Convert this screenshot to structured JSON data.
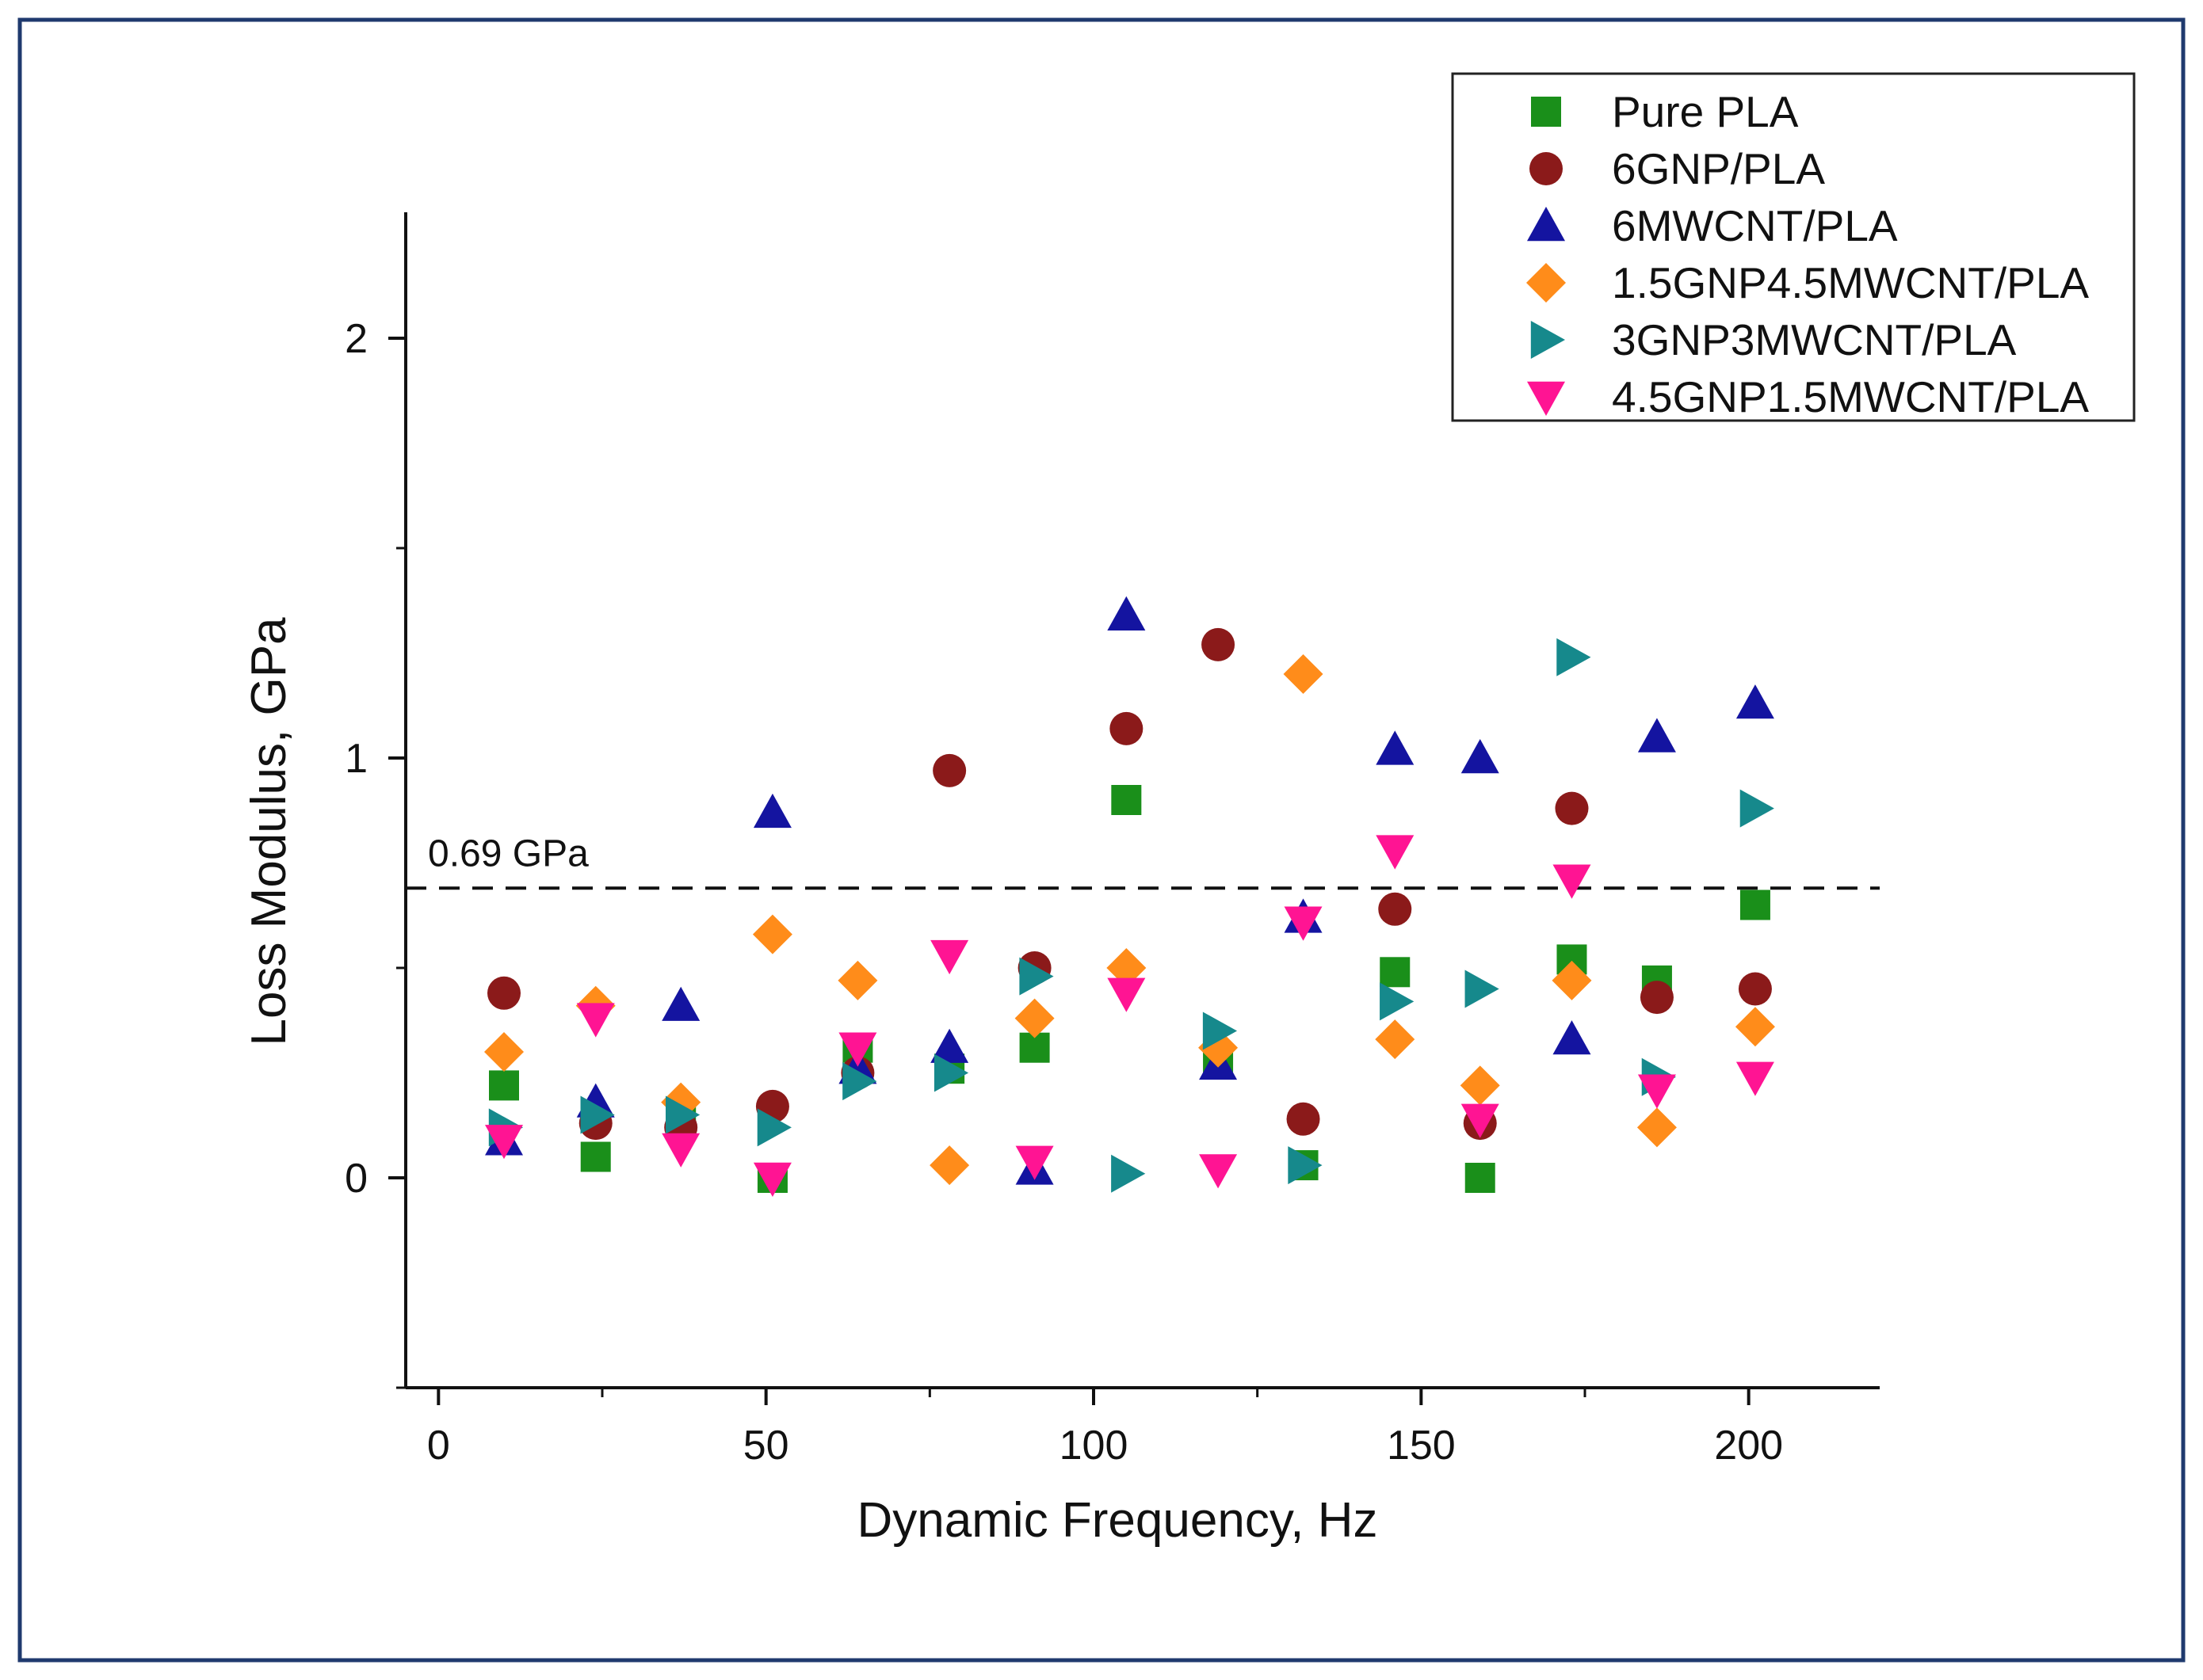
{
  "chart_data": {
    "type": "scatter",
    "title": "",
    "xlabel": "Dynamic Frequency, Hz",
    "ylabel": "Loss Modulus, GPa",
    "xlim": [
      -5,
      220
    ],
    "ylim": [
      -0.5,
      2.3
    ],
    "xticks": [
      0,
      50,
      100,
      150,
      200
    ],
    "xtick_labels": [
      "0",
      "50",
      "100",
      "150",
      "200"
    ],
    "yticks": [
      0,
      1,
      2
    ],
    "ytick_labels": [
      "0",
      "1",
      "2"
    ],
    "grid": false,
    "legend_position": "top-right",
    "reference_line": {
      "y": 0.69,
      "label": "0.69 GPa",
      "style": "dashed"
    },
    "x": [
      10,
      24,
      37,
      51,
      64,
      78,
      91,
      105,
      119,
      132,
      146,
      159,
      173,
      186,
      201
    ],
    "series": [
      {
        "name": "Pure PLA",
        "marker": "square",
        "color": "#1a8f1a",
        "values": [
          0.22,
          0.05,
          0.15,
          0.0,
          0.31,
          0.26,
          0.31,
          0.9,
          0.27,
          0.03,
          0.49,
          0.0,
          0.52,
          0.47,
          0.65
        ]
      },
      {
        "name": "6GNP/PLA",
        "marker": "circle",
        "color": "#8b1a1a",
        "values": [
          0.44,
          0.13,
          0.12,
          0.17,
          0.25,
          0.97,
          0.5,
          1.07,
          1.27,
          0.14,
          0.64,
          0.13,
          0.88,
          0.43,
          0.45
        ]
      },
      {
        "name": "6MWCNT/PLA",
        "marker": "triangle-up",
        "color": "#1414a0",
        "values": [
          0.09,
          0.18,
          0.41,
          0.87,
          0.26,
          0.31,
          0.02,
          1.34,
          0.27,
          0.62,
          1.02,
          1.0,
          0.33,
          1.05,
          1.13
        ]
      },
      {
        "name": "1.5GNP4.5MWCNT/PLA",
        "marker": "diamond",
        "color": "#ff8c1a",
        "values": [
          0.3,
          0.41,
          0.18,
          0.58,
          0.47,
          0.03,
          0.38,
          0.5,
          0.31,
          1.2,
          0.33,
          0.22,
          0.47,
          0.12,
          0.36
        ]
      },
      {
        "name": "3GNP3MWCNT/PLA",
        "marker": "triangle-right",
        "color": "#16898c",
        "values": [
          0.12,
          0.15,
          0.15,
          0.12,
          0.23,
          0.25,
          0.48,
          0.01,
          0.35,
          0.03,
          0.42,
          0.45,
          1.24,
          0.24,
          0.88
        ]
      },
      {
        "name": "4.5GNP1.5MWCNT/PLA",
        "marker": "triangle-down",
        "color": "#ff1493",
        "values": [
          0.09,
          0.38,
          0.07,
          0.0,
          0.31,
          0.53,
          0.04,
          0.44,
          0.02,
          0.61,
          0.78,
          0.14,
          0.71,
          0.21,
          0.24
        ]
      }
    ]
  }
}
